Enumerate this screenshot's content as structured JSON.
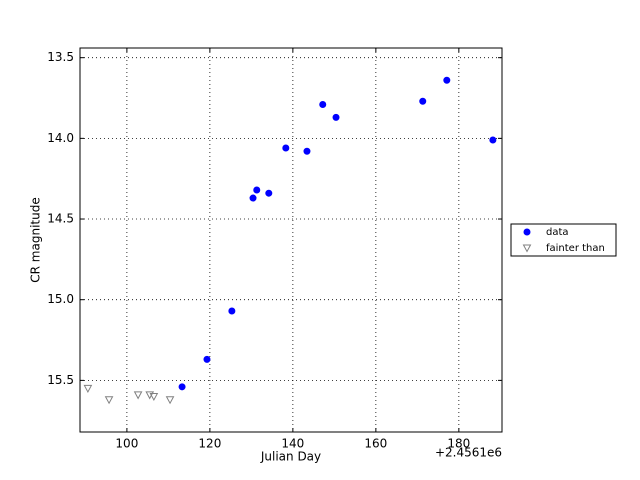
{
  "chart_data": {
    "type": "scatter",
    "xlabel": "Julian Day",
    "ylabel": "CR magnitude",
    "x_offset_text": "+2.4561e6",
    "xlim": [
      88.7,
      190.4
    ],
    "ylim": [
      15.82,
      13.44
    ],
    "y_inverted": true,
    "xticks": [
      100,
      120,
      140,
      160,
      180
    ],
    "yticks": [
      13.5,
      {
        "value": 14,
        "label": "14.0"
      },
      14.5,
      {
        "value": 15,
        "label": "15.0"
      },
      15.5
    ],
    "grid": true,
    "legend": "outside-right",
    "series": [
      {
        "name": "data",
        "color": "#0000ff",
        "marker": "circle",
        "x": [
          113.3,
          119.3,
          125.3,
          130.4,
          131.3,
          134.2,
          138.3,
          143.4,
          147.2,
          150.4,
          171.3,
          177.1,
          188.2
        ],
        "values": [
          15.54,
          15.37,
          15.07,
          14.37,
          14.32,
          14.34,
          14.06,
          14.08,
          13.79,
          13.87,
          13.77,
          13.64,
          14.01
        ]
      },
      {
        "name": "fainter than",
        "color": "#808080",
        "marker": "triangle-down",
        "x": [
          90.6,
          95.7,
          102.7,
          105.5,
          106.5,
          110.4
        ],
        "values": [
          15.55,
          15.62,
          15.59,
          15.59,
          15.6,
          15.62
        ]
      }
    ]
  }
}
